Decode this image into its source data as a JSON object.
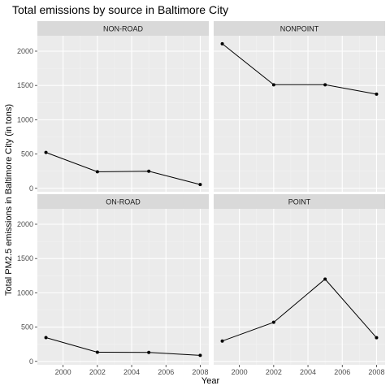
{
  "chart_data": {
    "type": "line",
    "title": "Total emissions by source in Baltimore City",
    "xlabel": "Year",
    "ylabel": "Total PM2.5 emissions in Baltimore City (in tons)",
    "x": [
      1999,
      2002,
      2005,
      2008
    ],
    "xticks": [
      2000,
      2002,
      2004,
      2006,
      2008
    ],
    "yticks": [
      0,
      500,
      1000,
      1500,
      2000
    ],
    "xlim": [
      1998.5,
      2008.5
    ],
    "ylim": [
      -50,
      2225
    ],
    "layout": "facet grid 2x2",
    "grid": true,
    "panels": [
      {
        "name": "NON-ROAD",
        "values": [
          523,
          242,
          249,
          55
        ]
      },
      {
        "name": "NONPOINT",
        "values": [
          2108,
          1510,
          1510,
          1373
        ]
      },
      {
        "name": "ON-ROAD",
        "values": [
          347,
          134,
          131,
          88
        ]
      },
      {
        "name": "POINT",
        "values": [
          297,
          570,
          1200,
          345
        ]
      }
    ],
    "colors": {
      "panel_background": "#ebebeb",
      "grid_major": "#ffffff",
      "grid_minor": "#f2f2f2",
      "strip_background": "#d9d9d9",
      "line": "#000000",
      "tick_text": "#4d4d4d"
    }
  }
}
